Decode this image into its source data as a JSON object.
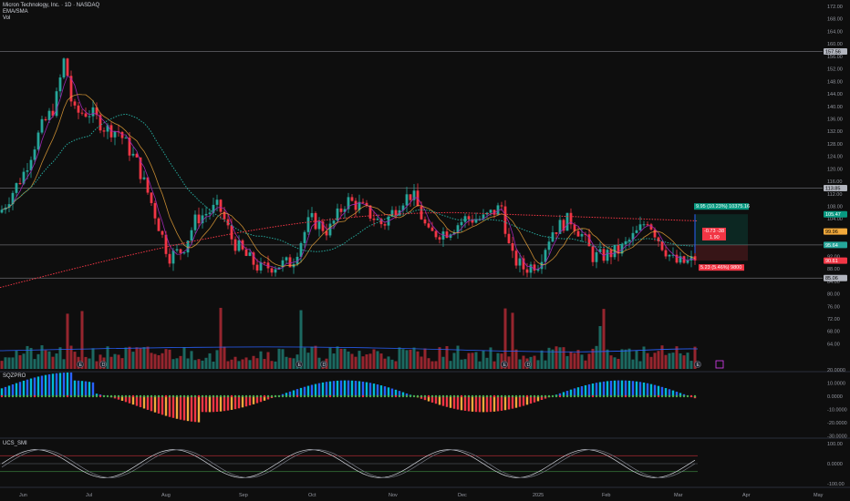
{
  "header": {
    "title": "Micron Technology, Inc. · 1D · NASDAQ",
    "ind1": "EMA/SMA",
    "ind2": "Vol"
  },
  "panes": {
    "sqz_label": "SQZPRO",
    "smi_label": "UCS_SMI"
  },
  "price_axis": {
    "ticks": [
      "172.00",
      "168.00",
      "164.00",
      "160.00",
      "156.00",
      "152.00",
      "148.00",
      "144.00",
      "140.00",
      "136.00",
      "132.00",
      "128.00",
      "124.00",
      "120.00",
      "116.00",
      "112.00",
      "108.00",
      "104.00",
      "100.00",
      "96.00",
      "92.00",
      "88.00",
      "84.00",
      "80.00",
      "76.00",
      "72.00",
      "68.00",
      "64.00"
    ],
    "tags": [
      {
        "text": "157.56",
        "bg": "#b2b5be",
        "fg": "#000000"
      },
      {
        "text": "113.85",
        "bg": "#b2b5be",
        "fg": "#000000"
      },
      {
        "text": "105.47",
        "bg": "#089981",
        "fg": "#ffffff"
      },
      {
        "text": "99.96",
        "bg": "#f2a93b",
        "fg": "#000000"
      },
      {
        "text": "95.64",
        "bg": "#26a69a",
        "fg": "#ffffff"
      },
      {
        "text": "90.61",
        "bg": "#f23645",
        "fg": "#ffffff"
      },
      {
        "text": "85.06",
        "bg": "#b2b5be",
        "fg": "#000000"
      }
    ]
  },
  "sqz_axis": {
    "ticks": [
      "20.0000",
      "10.0000",
      "0.0000",
      "-10.0000",
      "-20.0000",
      "-30.0000"
    ]
  },
  "smi_axis": {
    "ticks": [
      "100.00",
      "0.0000",
      "-100.00"
    ]
  },
  "time_axis": {
    "labels": [
      "Jun",
      "Jul",
      "Aug",
      "Sep",
      "Oct",
      "Nov",
      "Dec",
      "2025",
      "Feb",
      "Mar",
      "Apr",
      "May"
    ]
  },
  "position_tool": {
    "target_label": "9.95 (10.23%) 10375.16",
    "stop_label": "5.23 (5.46%) 9800",
    "rr_label_1": "-0.73 -38",
    "rr_label_2": "1.90"
  },
  "colors": {
    "up": "#26a69a",
    "down": "#f23645",
    "background": "#0e0e0e"
  },
  "icons": [
    "earnings-icon",
    "dividend-icon",
    "settings-icon"
  ]
}
